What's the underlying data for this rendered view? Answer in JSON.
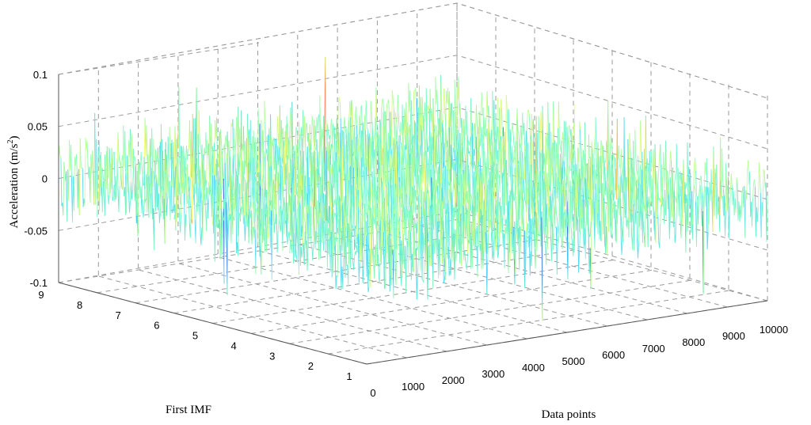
{
  "chart_data": {
    "type": "surface-3d-waterfall",
    "title": "",
    "xlabel": "Data points",
    "ylabel": "First IMF",
    "zlabel_main": "Acceleration (m/s",
    "zlabel_sup": "2",
    "zlabel_end": ")",
    "xlim": [
      0,
      10000
    ],
    "ylim": [
      1,
      9
    ],
    "zlim": [
      -0.1,
      0.1
    ],
    "x_ticks": [
      "0",
      "1000",
      "2000",
      "3000",
      "4000",
      "5000",
      "6000",
      "7000",
      "8000",
      "9000",
      "10000"
    ],
    "y_ticks": [
      "1",
      "2",
      "3",
      "4",
      "5",
      "6",
      "7",
      "8",
      "9"
    ],
    "z_ticks": [
      "0.1",
      "0.05",
      "0",
      "-0.05",
      "-0.1"
    ],
    "z_tick_values": [
      0.1,
      0.05,
      0,
      -0.05,
      -0.1
    ],
    "grid": true,
    "colormap": [
      "#2a3cd8",
      "#3fc6ff",
      "#7fffc0",
      "#ffff66",
      "#ff3b2f"
    ],
    "series_count": 9,
    "typical_amplitude": 0.04
  }
}
